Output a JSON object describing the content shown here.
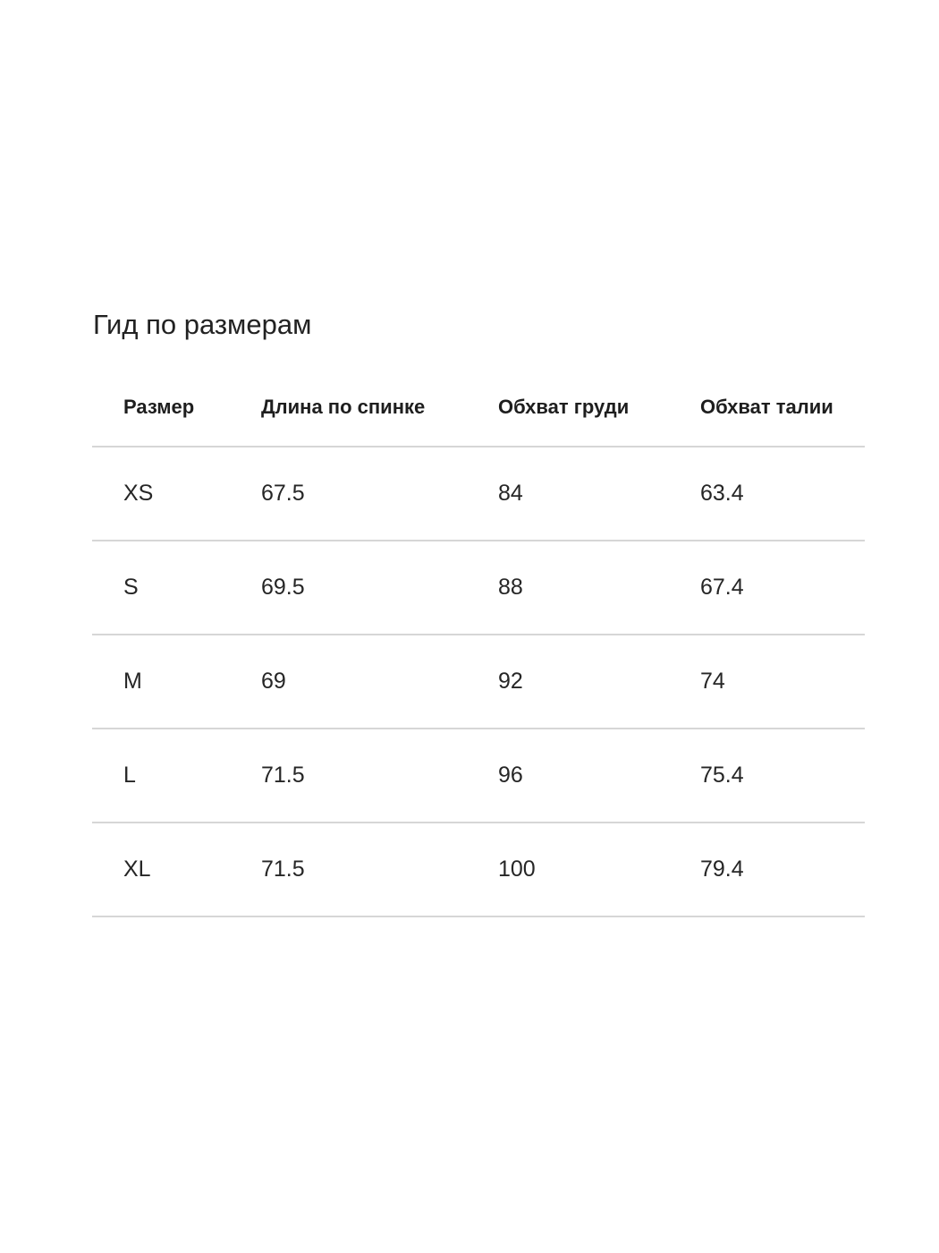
{
  "title": "Гид по размерам",
  "table": {
    "headers": [
      "Размер",
      "Длина по спинке",
      "Обхват груди",
      "Обхват талии"
    ],
    "rows": [
      [
        "XS",
        "67.5",
        "84",
        "63.4"
      ],
      [
        "S",
        "69.5",
        "88",
        "67.4"
      ],
      [
        "M",
        "69",
        "92",
        "74"
      ],
      [
        "L",
        "71.5",
        "96",
        "75.4"
      ],
      [
        "XL",
        "71.5",
        "100",
        "79.4"
      ]
    ]
  }
}
